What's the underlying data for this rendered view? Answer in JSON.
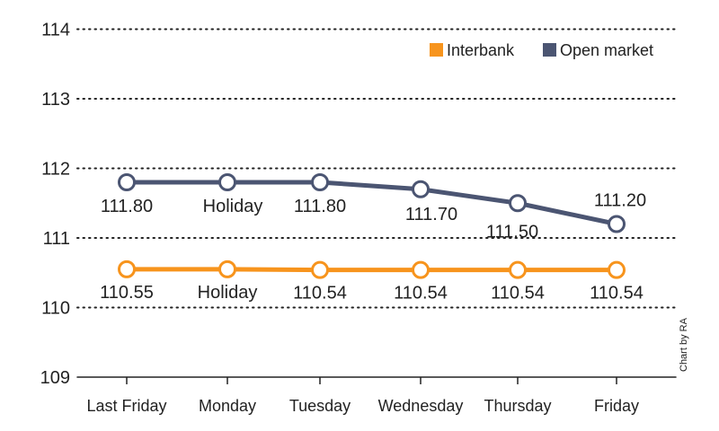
{
  "chart_data": {
    "type": "line",
    "categories": [
      "Last Friday",
      "Monday",
      "Tuesday",
      "Wednesday",
      "Thursday",
      "Friday"
    ],
    "ylim": [
      109,
      114
    ],
    "yticks": [
      109,
      110,
      111,
      112,
      113,
      114
    ],
    "grid": true,
    "legend_position": "top-right",
    "series": [
      {
        "name": "Interbank",
        "color": "#F7941D",
        "values": [
          110.55,
          null,
          110.54,
          110.54,
          110.54,
          110.54
        ],
        "plotted": [
          110.55,
          110.55,
          110.54,
          110.54,
          110.54,
          110.54
        ],
        "labels": [
          "110.55",
          "Holiday",
          "110.54",
          "110.54",
          "110.54",
          "110.54"
        ]
      },
      {
        "name": "Open market",
        "color": "#4B5572",
        "values": [
          111.8,
          null,
          111.8,
          111.7,
          111.5,
          111.2
        ],
        "plotted": [
          111.8,
          111.8,
          111.8,
          111.7,
          111.5,
          111.2
        ],
        "labels": [
          "111.80",
          "Holiday",
          "111.80",
          "111.70",
          "111.50",
          "111.20"
        ]
      }
    ],
    "credit": "Chart by RA"
  }
}
